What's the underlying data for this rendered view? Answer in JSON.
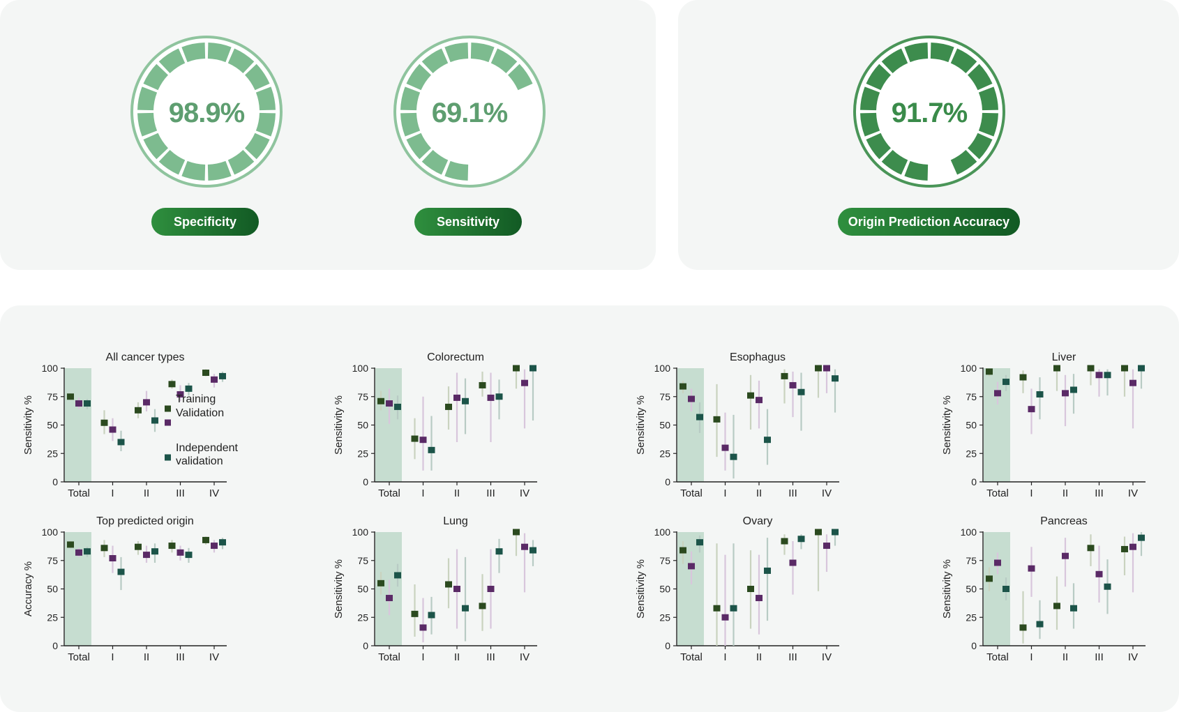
{
  "gauges": [
    {
      "value": "98.9%",
      "fraction": 0.989,
      "label": "Specificity",
      "color": "#7dbb8f",
      "text_color": "#5e9e70",
      "rim": "#8fc49e"
    },
    {
      "value": "69.1%",
      "fraction": 0.691,
      "label": "Sensitivity",
      "color": "#7dbb8f",
      "text_color": "#5e9e70",
      "rim": "#8fc49e"
    },
    {
      "value": "91.7%",
      "fraction": 0.917,
      "label": "Origin Prediction Accuracy",
      "color": "#3d8c4d",
      "text_color": "#3a8b4a",
      "rim": "#4a9558"
    }
  ],
  "legend": [
    "Training",
    "Validation",
    "Independent validation"
  ],
  "legend_lines": [
    [
      "Training"
    ],
    [
      "Validation"
    ],
    [
      "Independent",
      "validation"
    ]
  ],
  "colors": {
    "training": "#2b4a1f",
    "validation": "#5a2a66",
    "independent": "#1c5449",
    "total_band": "#c6ddd0"
  },
  "chart_data": [
    {
      "type": "scatter",
      "title": "All cancer types",
      "ylabel": "Sensitivity %",
      "xlabel": "",
      "categories": [
        "Total",
        "I",
        "II",
        "III",
        "IV"
      ],
      "ylim": [
        0,
        100
      ],
      "yticks": [
        0,
        25,
        50,
        75,
        100
      ],
      "series": [
        {
          "name": "Training",
          "values": [
            75,
            52,
            63,
            86,
            96
          ],
          "lower": [
            72,
            42,
            56,
            82,
            93
          ],
          "upper": [
            78,
            63,
            70,
            90,
            99
          ]
        },
        {
          "name": "Validation",
          "values": [
            69,
            46,
            70,
            77,
            90
          ],
          "lower": [
            64,
            36,
            62,
            71,
            83
          ],
          "upper": [
            74,
            56,
            80,
            85,
            95
          ]
        },
        {
          "name": "Independent validation",
          "values": [
            69,
            35,
            54,
            82,
            93
          ],
          "lower": [
            64,
            27,
            44,
            76,
            88
          ],
          "upper": [
            73,
            45,
            64,
            87,
            97
          ]
        }
      ]
    },
    {
      "type": "scatter",
      "title": "Colorectum",
      "ylabel": "Sensitivity %",
      "xlabel": "",
      "categories": [
        "Total",
        "I",
        "II",
        "III",
        "IV"
      ],
      "ylim": [
        0,
        100
      ],
      "yticks": [
        0,
        25,
        50,
        75,
        100
      ],
      "series": [
        {
          "name": "Training",
          "values": [
            71,
            38,
            66,
            85,
            100
          ],
          "lower": [
            63,
            20,
            46,
            75,
            82
          ],
          "upper": [
            80,
            56,
            84,
            97,
            100
          ]
        },
        {
          "name": "Validation",
          "values": [
            69,
            37,
            74,
            74,
            87
          ],
          "lower": [
            51,
            10,
            35,
            35,
            47
          ],
          "upper": [
            82,
            75,
            96,
            96,
            99
          ]
        },
        {
          "name": "Independent validation",
          "values": [
            66,
            28,
            71,
            75,
            100
          ],
          "lower": [
            55,
            10,
            42,
            55,
            54
          ],
          "upper": [
            76,
            58,
            91,
            90,
            100
          ]
        }
      ]
    },
    {
      "type": "scatter",
      "title": "Esophagus",
      "ylabel": "Sensitivity %",
      "xlabel": "",
      "categories": [
        "Total",
        "I",
        "II",
        "III",
        "IV"
      ],
      "ylim": [
        0,
        100
      ],
      "yticks": [
        0,
        25,
        50,
        75,
        100
      ],
      "series": [
        {
          "name": "Training",
          "values": [
            84,
            55,
            76,
            93,
            100
          ],
          "lower": [
            78,
            22,
            46,
            69,
            74
          ],
          "upper": [
            89,
            86,
            94,
            99,
            100
          ]
        },
        {
          "name": "Validation",
          "values": [
            73,
            30,
            72,
            85,
            100
          ],
          "lower": [
            62,
            10,
            47,
            57,
            78
          ],
          "upper": [
            82,
            61,
            89,
            97,
            100
          ]
        },
        {
          "name": "Independent validation",
          "values": [
            57,
            22,
            37,
            79,
            91
          ],
          "lower": [
            43,
            3,
            15,
            45,
            61
          ],
          "upper": [
            70,
            59,
            64,
            96,
            99
          ]
        }
      ]
    },
    {
      "type": "scatter",
      "title": "Liver",
      "ylabel": "Sensitivity %",
      "xlabel": "",
      "categories": [
        "Total",
        "I",
        "II",
        "III",
        "IV"
      ],
      "ylim": [
        0,
        100
      ],
      "yticks": [
        0,
        25,
        50,
        75,
        100
      ],
      "series": [
        {
          "name": "Training",
          "values": [
            97,
            92,
            100,
            100,
            100
          ],
          "lower": [
            93,
            78,
            80,
            85,
            75
          ],
          "upper": [
            99,
            98,
            100,
            100,
            100
          ]
        },
        {
          "name": "Validation",
          "values": [
            78,
            64,
            78,
            94,
            87
          ],
          "lower": [
            68,
            42,
            49,
            75,
            47
          ],
          "upper": [
            88,
            82,
            94,
            99,
            99
          ]
        },
        {
          "name": "Independent validation",
          "values": [
            88,
            77,
            81,
            94,
            100
          ],
          "lower": [
            80,
            55,
            60,
            76,
            82
          ],
          "upper": [
            94,
            92,
            95,
            99,
            100
          ]
        }
      ]
    },
    {
      "type": "scatter",
      "title": "Top predicted origin",
      "ylabel": "Accuracy %",
      "xlabel": "",
      "categories": [
        "Total",
        "I",
        "II",
        "III",
        "IV"
      ],
      "ylim": [
        0,
        100
      ],
      "yticks": [
        0,
        25,
        50,
        75,
        100
      ],
      "series": [
        {
          "name": "Training",
          "values": [
            89,
            86,
            87,
            88,
            93
          ],
          "lower": [
            86,
            78,
            80,
            82,
            89
          ],
          "upper": [
            92,
            93,
            92,
            93,
            96
          ]
        },
        {
          "name": "Validation",
          "values": [
            82,
            77,
            80,
            82,
            88
          ],
          "lower": [
            78,
            64,
            73,
            75,
            82
          ],
          "upper": [
            86,
            88,
            88,
            88,
            93
          ]
        },
        {
          "name": "Independent validation",
          "values": [
            83,
            65,
            83,
            80,
            91
          ],
          "lower": [
            78,
            49,
            73,
            73,
            85
          ],
          "upper": [
            87,
            78,
            90,
            86,
            95
          ]
        }
      ]
    },
    {
      "type": "scatter",
      "title": "Lung",
      "ylabel": "Sensitivity %",
      "xlabel": "",
      "categories": [
        "Total",
        "I",
        "II",
        "III",
        "IV"
      ],
      "ylim": [
        0,
        100
      ],
      "yticks": [
        0,
        25,
        50,
        75,
        100
      ],
      "series": [
        {
          "name": "Training",
          "values": [
            55,
            28,
            54,
            35,
            100
          ],
          "lower": [
            45,
            8,
            33,
            13,
            79
          ],
          "upper": [
            65,
            54,
            77,
            63,
            100
          ]
        },
        {
          "name": "Validation",
          "values": [
            42,
            16,
            50,
            50,
            87
          ],
          "lower": [
            27,
            3,
            15,
            15,
            47
          ],
          "upper": [
            58,
            42,
            85,
            85,
            99
          ]
        },
        {
          "name": "Independent validation",
          "values": [
            62,
            27,
            33,
            83,
            84
          ],
          "lower": [
            52,
            10,
            4,
            64,
            70
          ],
          "upper": [
            72,
            43,
            78,
            94,
            93
          ]
        }
      ]
    },
    {
      "type": "scatter",
      "title": "Ovary",
      "ylabel": "Sensitivity %",
      "xlabel": "",
      "categories": [
        "Total",
        "I",
        "II",
        "III",
        "IV"
      ],
      "ylim": [
        0,
        100
      ],
      "yticks": [
        0,
        25,
        50,
        75,
        100
      ],
      "series": [
        {
          "name": "Training",
          "values": [
            84,
            33,
            50,
            92,
            100
          ],
          "lower": [
            72,
            0,
            15,
            80,
            48
          ],
          "upper": [
            92,
            90,
            84,
            98,
            100
          ]
        },
        {
          "name": "Validation",
          "values": [
            70,
            25,
            42,
            73,
            88
          ],
          "lower": [
            54,
            0,
            10,
            45,
            65
          ],
          "upper": [
            83,
            80,
            80,
            92,
            98
          ]
        },
        {
          "name": "Independent validation",
          "values": [
            91,
            33,
            66,
            94,
            100
          ],
          "lower": [
            82,
            0,
            22,
            85,
            88
          ],
          "upper": [
            97,
            90,
            95,
            98,
            100
          ]
        }
      ]
    },
    {
      "type": "scatter",
      "title": "Pancreas",
      "ylabel": "Sensitivity %",
      "xlabel": "",
      "categories": [
        "Total",
        "I",
        "II",
        "III",
        "IV"
      ],
      "ylim": [
        0,
        100
      ],
      "yticks": [
        0,
        25,
        50,
        75,
        100
      ],
      "series": [
        {
          "name": "Training",
          "values": [
            59,
            16,
            35,
            86,
            85
          ],
          "lower": [
            48,
            2,
            14,
            70,
            62
          ],
          "upper": [
            69,
            48,
            61,
            98,
            96
          ]
        },
        {
          "name": "Validation",
          "values": [
            73,
            68,
            79,
            63,
            87
          ],
          "lower": [
            63,
            43,
            52,
            38,
            47
          ],
          "upper": [
            82,
            87,
            95,
            88,
            99
          ]
        },
        {
          "name": "Independent validation",
          "values": [
            50,
            19,
            33,
            52,
            95
          ],
          "lower": [
            40,
            6,
            15,
            28,
            79
          ],
          "upper": [
            60,
            40,
            55,
            76,
            100
          ]
        }
      ]
    }
  ]
}
